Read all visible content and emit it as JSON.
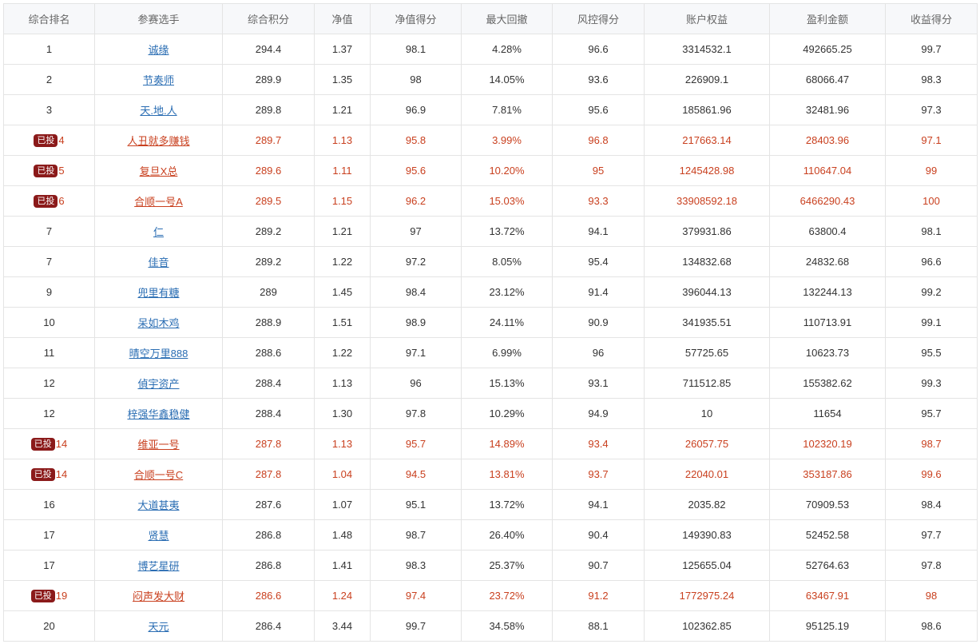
{
  "table": {
    "headers": [
      "综合排名",
      "参赛选手",
      "综合积分",
      "净值",
      "净值得分",
      "最大回撤",
      "风控得分",
      "账户权益",
      "盈利金额",
      "收益得分"
    ],
    "invested_badge": "已投",
    "rows": [
      {
        "rank": "1",
        "invested": false,
        "player": "诚缘",
        "score": "294.4",
        "nav": "1.37",
        "nav_score": "98.1",
        "max_drawdown": "4.28%",
        "risk_score": "96.6",
        "equity": "3314532.1",
        "profit": "492665.25",
        "return_score": "99.7"
      },
      {
        "rank": "2",
        "invested": false,
        "player": "节奏师",
        "score": "289.9",
        "nav": "1.35",
        "nav_score": "98",
        "max_drawdown": "14.05%",
        "risk_score": "93.6",
        "equity": "226909.1",
        "profit": "68066.47",
        "return_score": "98.3"
      },
      {
        "rank": "3",
        "invested": false,
        "player": "天.地.人",
        "score": "289.8",
        "nav": "1.21",
        "nav_score": "96.9",
        "max_drawdown": "7.81%",
        "risk_score": "95.6",
        "equity": "185861.96",
        "profit": "32481.96",
        "return_score": "97.3"
      },
      {
        "rank": "4",
        "invested": true,
        "player": "人丑就多赚钱",
        "score": "289.7",
        "nav": "1.13",
        "nav_score": "95.8",
        "max_drawdown": "3.99%",
        "risk_score": "96.8",
        "equity": "217663.14",
        "profit": "28403.96",
        "return_score": "97.1"
      },
      {
        "rank": "5",
        "invested": true,
        "player": "复旦X总",
        "score": "289.6",
        "nav": "1.11",
        "nav_score": "95.6",
        "max_drawdown": "10.20%",
        "risk_score": "95",
        "equity": "1245428.98",
        "profit": "110647.04",
        "return_score": "99"
      },
      {
        "rank": "6",
        "invested": true,
        "player": "合顺一号A",
        "score": "289.5",
        "nav": "1.15",
        "nav_score": "96.2",
        "max_drawdown": "15.03%",
        "risk_score": "93.3",
        "equity": "33908592.18",
        "profit": "6466290.43",
        "return_score": "100"
      },
      {
        "rank": "7",
        "invested": false,
        "player": "仁",
        "score": "289.2",
        "nav": "1.21",
        "nav_score": "97",
        "max_drawdown": "13.72%",
        "risk_score": "94.1",
        "equity": "379931.86",
        "profit": "63800.4",
        "return_score": "98.1"
      },
      {
        "rank": "7",
        "invested": false,
        "player": "佳音",
        "score": "289.2",
        "nav": "1.22",
        "nav_score": "97.2",
        "max_drawdown": "8.05%",
        "risk_score": "95.4",
        "equity": "134832.68",
        "profit": "24832.68",
        "return_score": "96.6"
      },
      {
        "rank": "9",
        "invested": false,
        "player": "兜里有糖",
        "score": "289",
        "nav": "1.45",
        "nav_score": "98.4",
        "max_drawdown": "23.12%",
        "risk_score": "91.4",
        "equity": "396044.13",
        "profit": "132244.13",
        "return_score": "99.2"
      },
      {
        "rank": "10",
        "invested": false,
        "player": "呆如木鸡",
        "score": "288.9",
        "nav": "1.51",
        "nav_score": "98.9",
        "max_drawdown": "24.11%",
        "risk_score": "90.9",
        "equity": "341935.51",
        "profit": "110713.91",
        "return_score": "99.1"
      },
      {
        "rank": "11",
        "invested": false,
        "player": "晴空万里888",
        "score": "288.6",
        "nav": "1.22",
        "nav_score": "97.1",
        "max_drawdown": "6.99%",
        "risk_score": "96",
        "equity": "57725.65",
        "profit": "10623.73",
        "return_score": "95.5"
      },
      {
        "rank": "12",
        "invested": false,
        "player": "偵宇资产",
        "score": "288.4",
        "nav": "1.13",
        "nav_score": "96",
        "max_drawdown": "15.13%",
        "risk_score": "93.1",
        "equity": "711512.85",
        "profit": "155382.62",
        "return_score": "99.3"
      },
      {
        "rank": "12",
        "invested": false,
        "player": "梓强华鑫稳健",
        "score": "288.4",
        "nav": "1.30",
        "nav_score": "97.8",
        "max_drawdown": "10.29%",
        "risk_score": "94.9",
        "equity": "10",
        "profit": "11654",
        "return_score": "95.7"
      },
      {
        "rank": "14",
        "invested": true,
        "player": "维亚一号",
        "score": "287.8",
        "nav": "1.13",
        "nav_score": "95.7",
        "max_drawdown": "14.89%",
        "risk_score": "93.4",
        "equity": "26057.75",
        "profit": "102320.19",
        "return_score": "98.7"
      },
      {
        "rank": "14",
        "invested": true,
        "player": "合顺一号C",
        "score": "287.8",
        "nav": "1.04",
        "nav_score": "94.5",
        "max_drawdown": "13.81%",
        "risk_score": "93.7",
        "equity": "22040.01",
        "profit": "353187.86",
        "return_score": "99.6"
      },
      {
        "rank": "16",
        "invested": false,
        "player": "大道甚夷",
        "score": "287.6",
        "nav": "1.07",
        "nav_score": "95.1",
        "max_drawdown": "13.72%",
        "risk_score": "94.1",
        "equity": "2035.82",
        "profit": "70909.53",
        "return_score": "98.4"
      },
      {
        "rank": "17",
        "invested": false,
        "player": "贤慧",
        "score": "286.8",
        "nav": "1.48",
        "nav_score": "98.7",
        "max_drawdown": "26.40%",
        "risk_score": "90.4",
        "equity": "149390.83",
        "profit": "52452.58",
        "return_score": "97.7"
      },
      {
        "rank": "17",
        "invested": false,
        "player": "博艺星研",
        "score": "286.8",
        "nav": "1.41",
        "nav_score": "98.3",
        "max_drawdown": "25.37%",
        "risk_score": "90.7",
        "equity": "125655.04",
        "profit": "52764.63",
        "return_score": "97.8"
      },
      {
        "rank": "19",
        "invested": true,
        "player": "闷声发大财",
        "score": "286.6",
        "nav": "1.24",
        "nav_score": "97.4",
        "max_drawdown": "23.72%",
        "risk_score": "91.2",
        "equity": "1772975.24",
        "profit": "63467.91",
        "return_score": "98"
      },
      {
        "rank": "20",
        "invested": false,
        "player": "天元",
        "score": "286.4",
        "nav": "3.44",
        "nav_score": "99.7",
        "max_drawdown": "34.58%",
        "risk_score": "88.1",
        "equity": "102362.85",
        "profit": "95125.19",
        "return_score": "98.6"
      }
    ]
  },
  "colors": {
    "link": "#2a6db3",
    "invested_text": "#c9401f",
    "badge_bg": "#8b1a1a",
    "header_bg": "#f7f8fa",
    "border": "#e4e4e4"
  }
}
